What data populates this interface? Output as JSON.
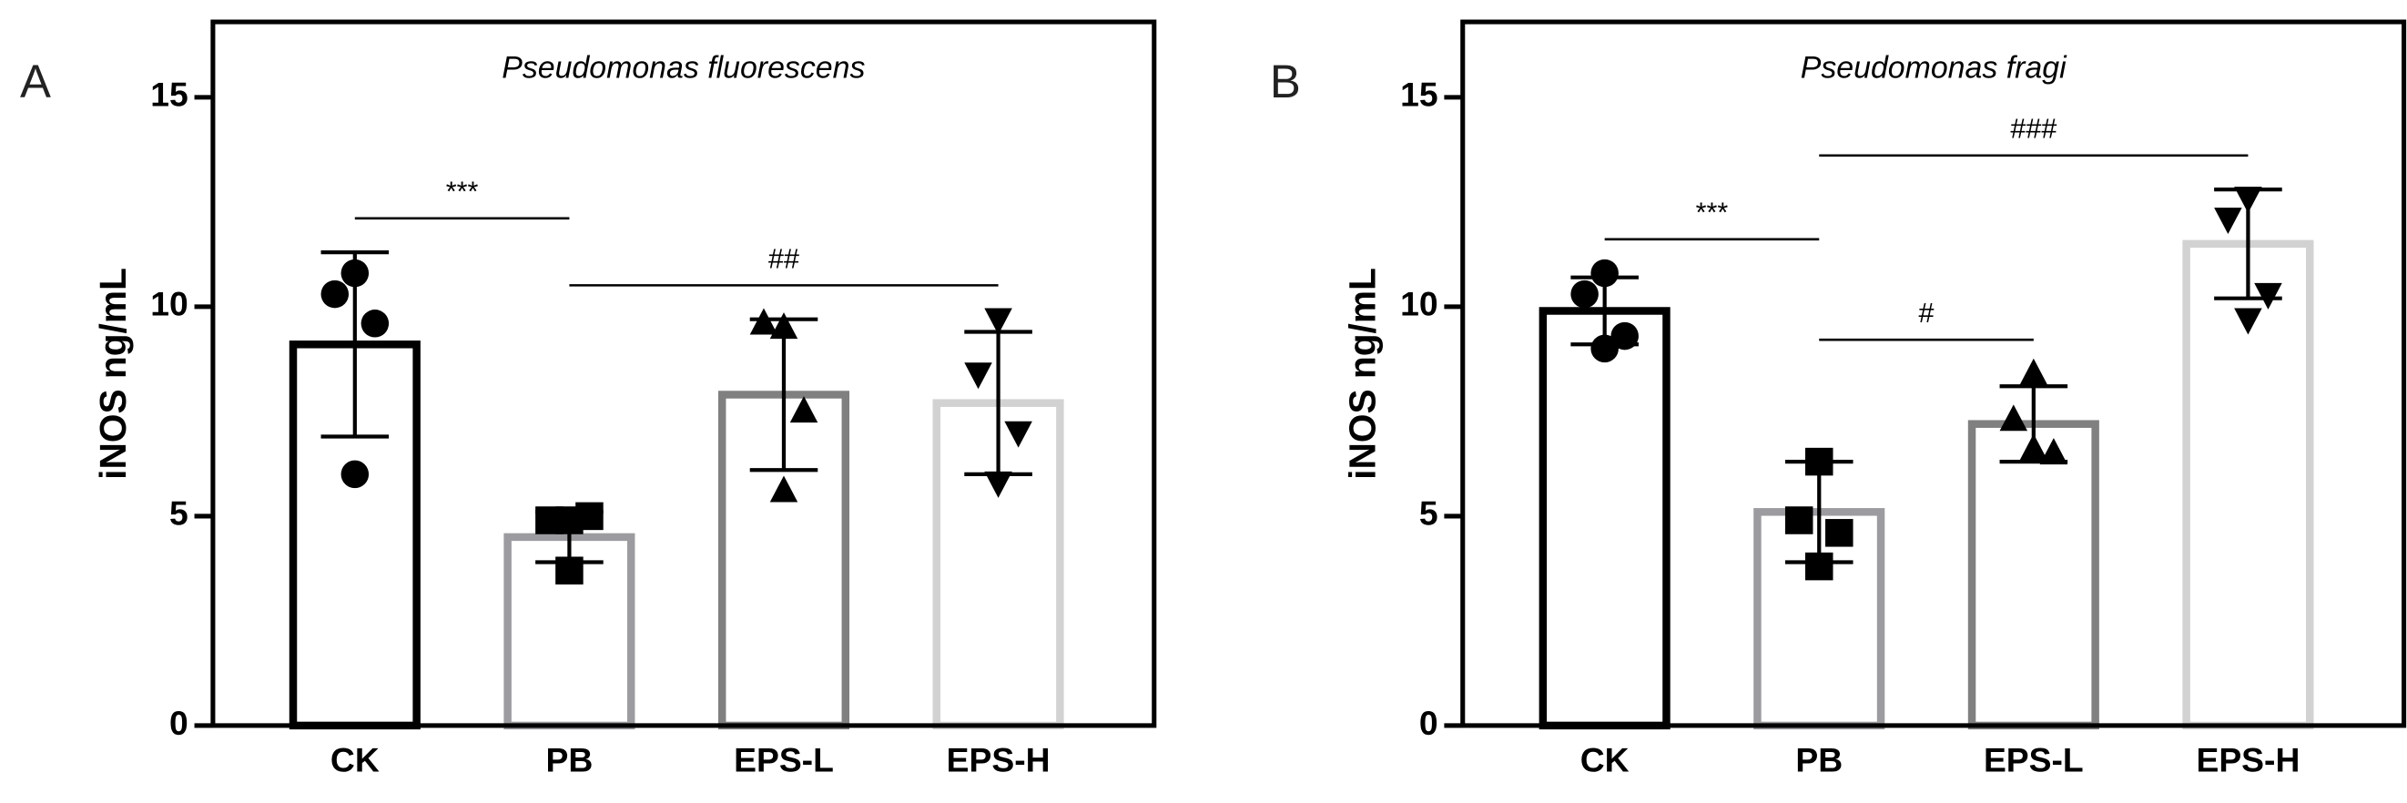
{
  "chart_data": [
    {
      "type": "bar",
      "panel": "A",
      "title": "Pseudomonas fluorescens",
      "ylabel": "iNOS ng/mL",
      "categories": [
        "CK",
        "PB",
        "EPS-L",
        "EPS-H"
      ],
      "values": [
        9.1,
        4.5,
        7.9,
        7.7
      ],
      "errors": [
        2.2,
        0.6,
        1.8,
        1.7
      ],
      "colors": [
        "#000000",
        "#9c9ca0",
        "#808080",
        "#d2d2d2"
      ],
      "markers": [
        "circle",
        "square",
        "triangle-up",
        "triangle-down"
      ],
      "points": [
        [
          10.8,
          10.3,
          9.6,
          6.0
        ],
        [
          4.9,
          4.9,
          5.0,
          3.7
        ],
        [
          9.5,
          9.6,
          7.5,
          5.6
        ],
        [
          9.7,
          8.4,
          7.0,
          5.8
        ]
      ],
      "ylim": [
        0,
        16.8
      ],
      "yticks": [
        0,
        5,
        10,
        15
      ],
      "annotations": [
        {
          "label": "***",
          "from": "CK",
          "to": "PB"
        },
        {
          "label": "##",
          "from": "PB",
          "to": "EPS-H"
        }
      ]
    },
    {
      "type": "bar",
      "panel": "B",
      "title": "Pseudomonas fragi",
      "ylabel": "iNOS ng/mL",
      "categories": [
        "CK",
        "PB",
        "EPS-L",
        "EPS-H"
      ],
      "values": [
        9.9,
        5.1,
        7.2,
        11.5
      ],
      "errors": [
        0.8,
        1.2,
        0.9,
        1.3
      ],
      "colors": [
        "#000000",
        "#9c9ca0",
        "#808080",
        "#d2d2d2"
      ],
      "markers": [
        "circle",
        "square",
        "triangle-up",
        "triangle-down"
      ],
      "points": [
        [
          10.8,
          10.3,
          9.3,
          9.0
        ],
        [
          6.3,
          4.9,
          4.6,
          3.8
        ],
        [
          8.4,
          7.3,
          6.5,
          6.6
        ],
        [
          12.6,
          12.1,
          10.3,
          9.7
        ]
      ],
      "ylim": [
        0,
        16.8
      ],
      "yticks": [
        0,
        5,
        10,
        15
      ],
      "annotations": [
        {
          "label": "***",
          "from": "CK",
          "to": "PB"
        },
        {
          "label": "#",
          "from": "PB",
          "to": "EPS-L"
        },
        {
          "label": "###",
          "from": "PB",
          "to": "EPS-H"
        }
      ]
    }
  ]
}
